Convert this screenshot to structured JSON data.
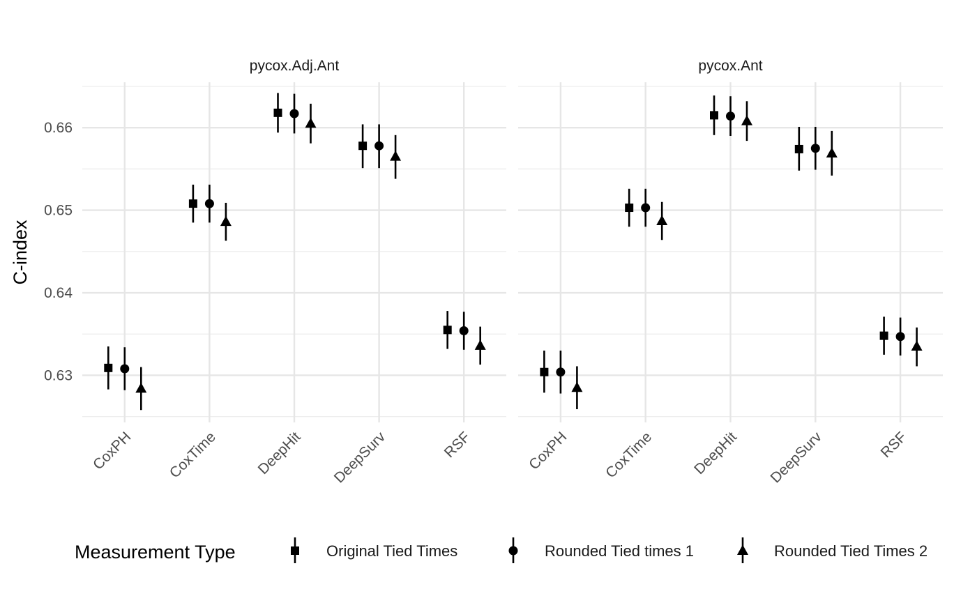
{
  "chart_data": {
    "type": "scatter",
    "subtype": "pointrange",
    "ylabel": "C-index",
    "xlabel": "",
    "ylim": [
      0.6243,
      0.6655
    ],
    "yticks": [
      0.63,
      0.64,
      0.65,
      0.66
    ],
    "ytick_labels": [
      "0.63",
      "0.64",
      "0.65",
      "0.66"
    ],
    "categories": [
      "CoxPH",
      "CoxTime",
      "DeepHit",
      "DeepSurv",
      "RSF"
    ],
    "grid": true,
    "legend": {
      "title": "Measurement Type",
      "position": "bottom",
      "entries": [
        {
          "label": "Original Tied Times",
          "shape": "square"
        },
        {
          "label": "Rounded Tied times 1",
          "shape": "circle"
        },
        {
          "label": "Rounded Tied Times 2",
          "shape": "triangle"
        }
      ]
    },
    "panels": [
      {
        "title": "pycox.Adj.Ant",
        "series": [
          {
            "name": "Original Tied Times",
            "shape": "square",
            "values": [
              0.6309,
              0.6508,
              0.6618,
              0.6578,
              0.6355
            ],
            "lower": [
              0.6283,
              0.6485,
              0.6594,
              0.6551,
              0.6332
            ],
            "upper": [
              0.6335,
              0.6531,
              0.6642,
              0.6604,
              0.6378
            ]
          },
          {
            "name": "Rounded Tied times 1",
            "shape": "circle",
            "values": [
              0.6308,
              0.6508,
              0.6617,
              0.6578,
              0.6354
            ],
            "lower": [
              0.6282,
              0.6485,
              0.6593,
              0.6551,
              0.6331
            ],
            "upper": [
              0.6334,
              0.6531,
              0.6641,
              0.6604,
              0.6377
            ]
          },
          {
            "name": "Rounded Tied Times 2",
            "shape": "triangle",
            "values": [
              0.6284,
              0.6486,
              0.6605,
              0.6565,
              0.6336
            ],
            "lower": [
              0.6258,
              0.6463,
              0.6581,
              0.6538,
              0.6313
            ],
            "upper": [
              0.631,
              0.6509,
              0.6629,
              0.6591,
              0.6359
            ]
          }
        ]
      },
      {
        "title": "pycox.Ant",
        "series": [
          {
            "name": "Original Tied Times",
            "shape": "square",
            "values": [
              0.6304,
              0.6503,
              0.6615,
              0.6574,
              0.6348
            ],
            "lower": [
              0.6279,
              0.648,
              0.6591,
              0.6548,
              0.6325
            ],
            "upper": [
              0.633,
              0.6526,
              0.6639,
              0.6601,
              0.6371
            ]
          },
          {
            "name": "Rounded Tied times 1",
            "shape": "circle",
            "values": [
              0.6304,
              0.6503,
              0.6614,
              0.6575,
              0.6347
            ],
            "lower": [
              0.6278,
              0.648,
              0.659,
              0.6549,
              0.6324
            ],
            "upper": [
              0.633,
              0.6526,
              0.6638,
              0.6601,
              0.637
            ]
          },
          {
            "name": "Rounded Tied Times 2",
            "shape": "triangle",
            "values": [
              0.6285,
              0.6487,
              0.6608,
              0.6569,
              0.6335
            ],
            "lower": [
              0.6259,
              0.6464,
              0.6584,
              0.6542,
              0.6311
            ],
            "upper": [
              0.6311,
              0.651,
              0.6632,
              0.6596,
              0.6358
            ]
          }
        ]
      }
    ]
  }
}
